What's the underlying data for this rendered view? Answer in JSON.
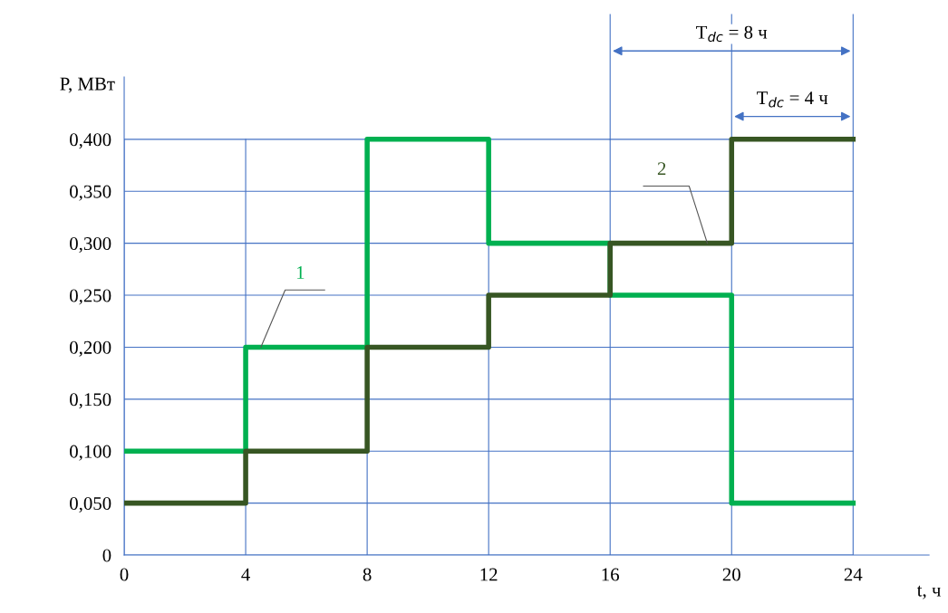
{
  "chart_data": {
    "type": "step",
    "xlabel": "t, ч",
    "ylabel": "P, МВт",
    "x": [
      0,
      4,
      8,
      12,
      16,
      20,
      24
    ],
    "series": [
      {
        "name": "1",
        "color": "#00b050",
        "values": [
          0.1,
          0.2,
          0.4,
          0.3,
          0.25,
          0.05,
          0.05
        ]
      },
      {
        "name": "2",
        "color": "#375623",
        "values": [
          0.05,
          0.1,
          0.2,
          0.25,
          0.3,
          0.4,
          0.4
        ]
      }
    ],
    "xlim": [
      0,
      26.5
    ],
    "ylim": [
      0,
      0.46
    ],
    "xticks": [
      0,
      4,
      8,
      12,
      16,
      20,
      24
    ],
    "yticks": [
      {
        "value": 0,
        "label": "0"
      },
      {
        "value": 0.05,
        "label": "0,050"
      },
      {
        "value": 0.1,
        "label": "0,100"
      },
      {
        "value": 0.15,
        "label": "0,150"
      },
      {
        "value": 0.2,
        "label": "0,200"
      },
      {
        "value": 0.25,
        "label": "0,250"
      },
      {
        "value": 0.3,
        "label": "0,300"
      },
      {
        "value": 0.35,
        "label": "0,350"
      },
      {
        "value": 0.4,
        "label": "0,400"
      }
    ],
    "annotations": [
      "T$_{dc}$ = 8 ч",
      "T$_{dc}$ = 4 ч"
    ],
    "grid": true,
    "legend": false,
    "line_style": "solid",
    "marker": "none"
  }
}
